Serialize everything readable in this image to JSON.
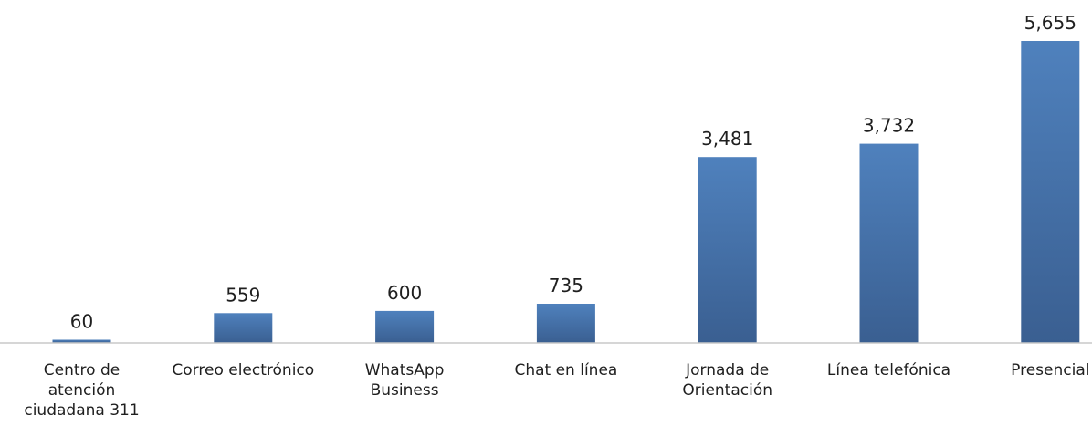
{
  "chart_data": {
    "type": "bar",
    "categories": [
      [
        "Centro de",
        "atención",
        "ciudadana 311"
      ],
      [
        "Correo electrónico"
      ],
      [
        "WhatsApp",
        "Business"
      ],
      [
        "Chat en línea"
      ],
      [
        "Jornada de",
        "Orientación"
      ],
      [
        "Línea telefónica"
      ],
      [
        "Presencial"
      ]
    ],
    "values": [
      60,
      559,
      600,
      735,
      3481,
      3732,
      5655
    ],
    "value_labels": [
      "60",
      "559",
      "600",
      "735",
      "3,481",
      "3,732",
      "5,655"
    ],
    "title": "",
    "xlabel": "",
    "ylabel": "",
    "ylim": [
      0,
      5655
    ],
    "grid": false,
    "legend": "none",
    "colors": {
      "bar_top": "#4f81bd",
      "bar_bottom": "#3a5f91",
      "axis": "#c8c8c8",
      "text": "#1f1f1f"
    }
  }
}
